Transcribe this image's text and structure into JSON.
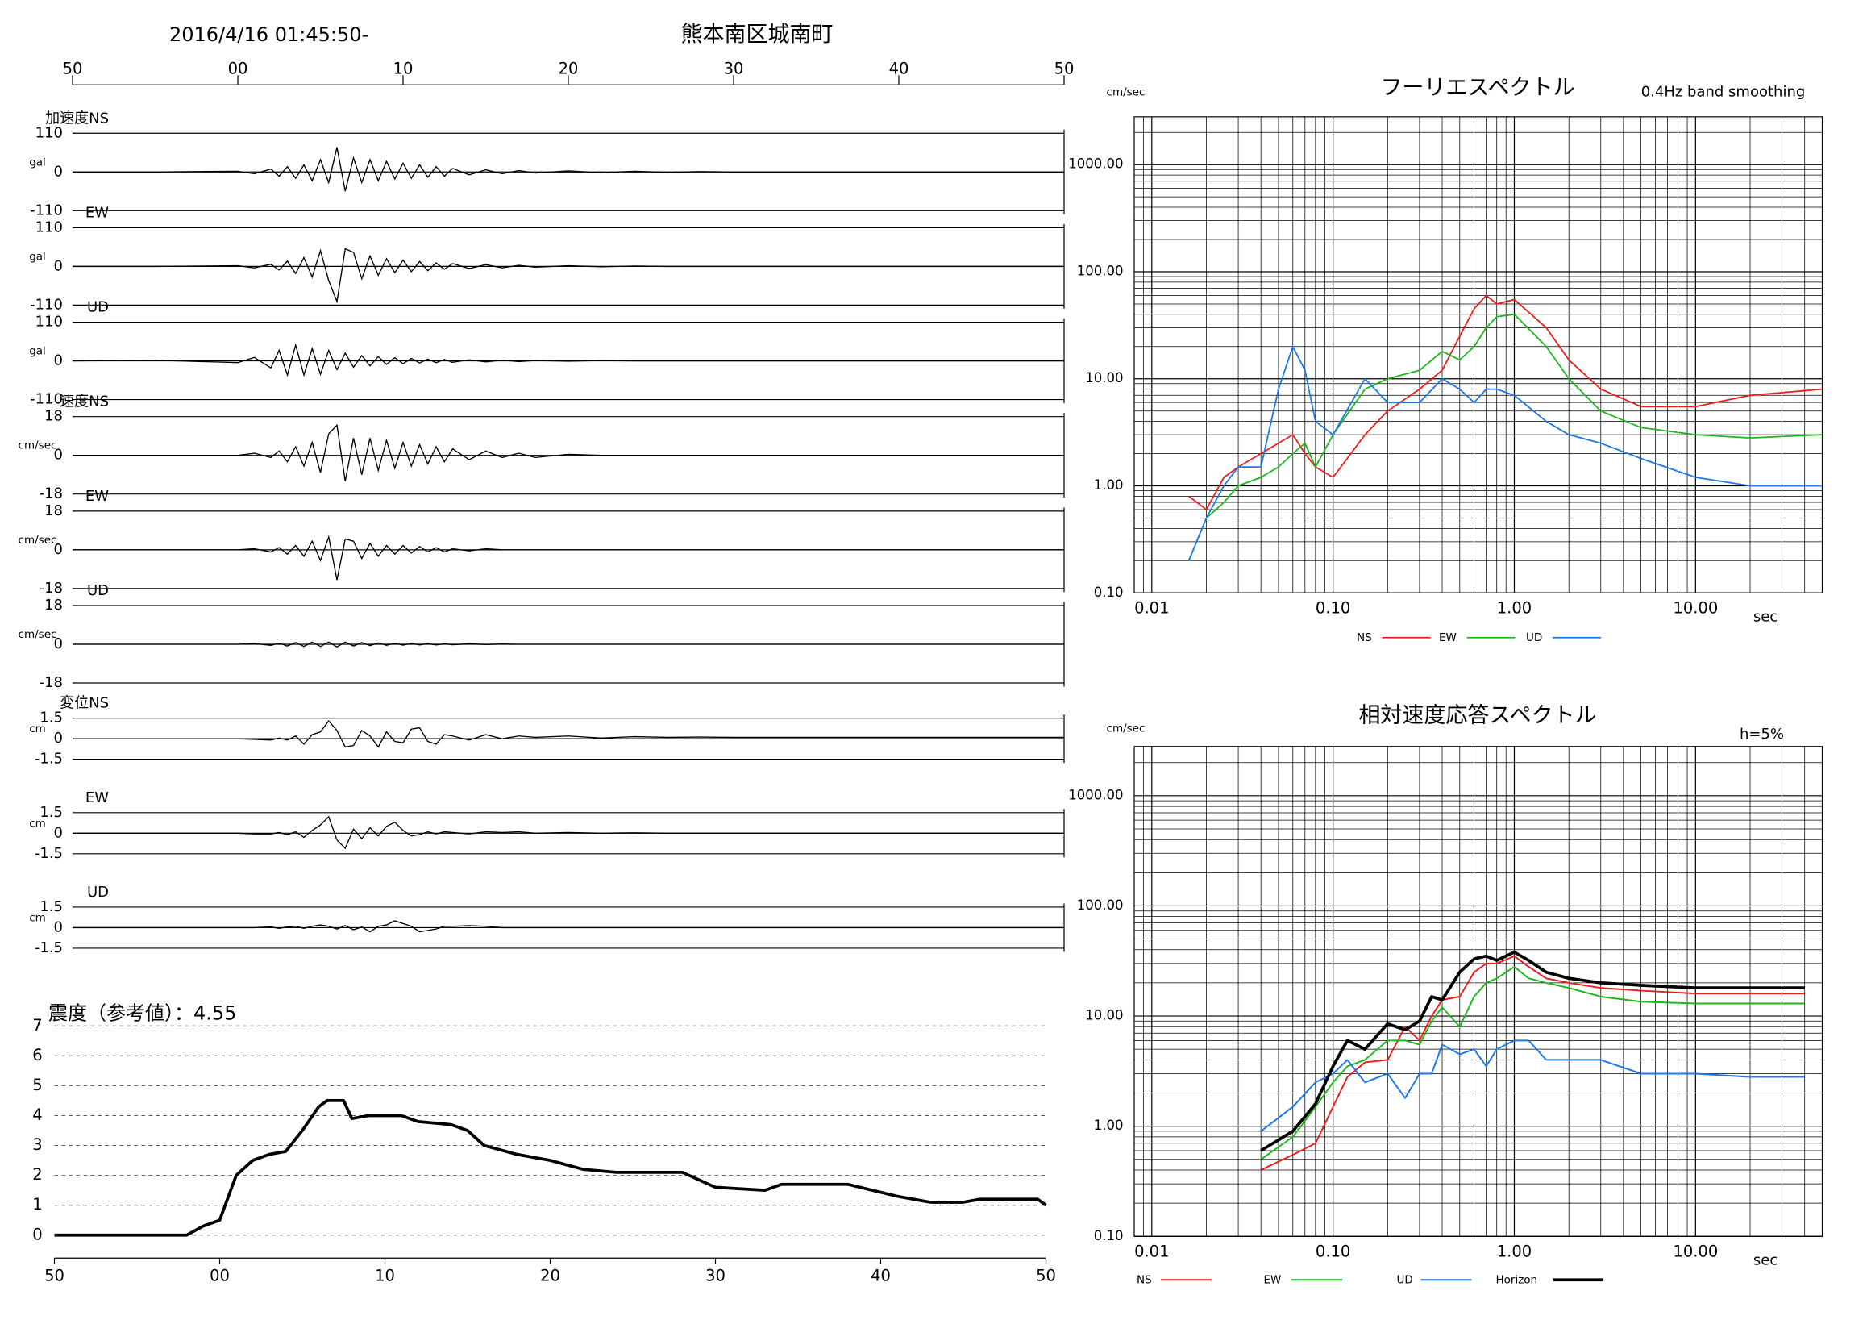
{
  "header": {
    "datetime": "2016/4/16 01:45:50-",
    "station": "熊本南区城南町"
  },
  "chart_data": [
    {
      "type": "waveforms",
      "xlim": [
        0,
        60
      ],
      "xticks": [
        {
          "value": 0,
          "label": "50"
        },
        {
          "value": 10,
          "label": "00"
        },
        {
          "value": 20,
          "label": "10"
        },
        {
          "value": 30,
          "label": "20"
        },
        {
          "value": 40,
          "label": "30"
        },
        {
          "value": 50,
          "label": "40"
        },
        {
          "value": 60,
          "label": "50"
        }
      ],
      "x": [
        0,
        5,
        10,
        11,
        12,
        12.5,
        13,
        13.5,
        14,
        14.5,
        15,
        15.5,
        16,
        16.5,
        17,
        17.5,
        18,
        18.5,
        19,
        19.5,
        20,
        20.5,
        21,
        21.5,
        22,
        22.5,
        23,
        24,
        25,
        26,
        27,
        28,
        30,
        32,
        34,
        36,
        38,
        40,
        45,
        50,
        55,
        60
      ],
      "series": [
        {
          "name": "加速度NS",
          "unit": "gal",
          "ylim": [
            -110,
            110
          ],
          "yticks": [
            -110,
            0,
            110
          ],
          "color": "#000000",
          "values": [
            0,
            0,
            2,
            -5,
            8,
            -12,
            15,
            -18,
            20,
            -25,
            35,
            -30,
            70,
            -55,
            40,
            -30,
            35,
            -25,
            30,
            -20,
            25,
            -18,
            20,
            -15,
            15,
            -12,
            10,
            -8,
            6,
            -5,
            4,
            -3,
            3,
            -2,
            2,
            -1,
            1,
            0,
            0,
            0,
            0,
            0
          ]
        },
        {
          "name": "EW",
          "unit": "gal",
          "ylim": [
            -110,
            110
          ],
          "yticks": [
            -110,
            0,
            110
          ],
          "color": "#000000",
          "values": [
            0,
            0,
            2,
            -4,
            6,
            -10,
            15,
            -20,
            25,
            -30,
            45,
            -40,
            -100,
            50,
            40,
            -35,
            30,
            -25,
            22,
            -18,
            18,
            -15,
            14,
            -12,
            10,
            -8,
            8,
            -6,
            5,
            -4,
            3,
            -2,
            2,
            -1,
            1,
            0,
            0,
            0,
            0,
            0,
            0,
            0
          ]
        },
        {
          "name": "UD",
          "unit": "gal",
          "ylim": [
            -110,
            110
          ],
          "yticks": [
            -110,
            0,
            110
          ],
          "color": "#000000",
          "values": [
            0,
            2,
            -5,
            10,
            -20,
            30,
            -40,
            45,
            -40,
            35,
            -38,
            30,
            -25,
            22,
            -18,
            15,
            -14,
            12,
            -10,
            9,
            -8,
            7,
            -6,
            5,
            -5,
            4,
            -4,
            3,
            -3,
            2,
            -2,
            1,
            -1,
            1,
            0,
            0,
            0,
            0,
            0,
            0,
            0,
            0
          ]
        },
        {
          "name": "速度NS",
          "unit": "cm/sec",
          "ylim": [
            -18,
            18
          ],
          "yticks": [
            -18,
            0,
            18
          ],
          "color": "#000000",
          "values": [
            0,
            0,
            0,
            1,
            -1,
            2,
            -3,
            4,
            -5,
            6,
            -8,
            10,
            14,
            -12,
            8,
            -9,
            8,
            -7,
            7,
            -6,
            6,
            -5,
            5,
            -4,
            4,
            -3,
            3,
            -2,
            2,
            -1,
            1,
            -1,
            0.5,
            0,
            0,
            0,
            0,
            0,
            0,
            0,
            0,
            0
          ]
        },
        {
          "name": "EW",
          "unit": "cm/sec",
          "ylim": [
            -18,
            18
          ],
          "yticks": [
            -18,
            0,
            18
          ],
          "color": "#000000",
          "values": [
            0,
            0,
            0,
            0.5,
            -1,
            1,
            -2,
            2,
            -3,
            4,
            -5,
            6,
            -14,
            5,
            4,
            -4,
            3,
            -3,
            2,
            -2,
            2,
            -1.5,
            1.5,
            -1,
            1,
            -1,
            0.5,
            -0.5,
            0.5,
            0,
            0,
            0,
            0,
            0,
            0,
            0,
            0,
            0,
            0,
            0,
            0,
            0
          ]
        },
        {
          "name": "UD",
          "unit": "cm/sec",
          "ylim": [
            -18,
            18
          ],
          "yticks": [
            -18,
            0,
            18
          ],
          "color": "#000000",
          "values": [
            0,
            0,
            0,
            0.3,
            -0.5,
            0.5,
            -0.8,
            0.8,
            -1,
            1,
            -1,
            1,
            -1.2,
            1,
            -0.8,
            0.8,
            -0.6,
            0.6,
            -0.5,
            0.5,
            -0.4,
            0.4,
            -0.3,
            0.3,
            -0.3,
            0.2,
            -0.2,
            0.2,
            -0.1,
            0.1,
            0,
            0,
            0,
            0,
            0,
            0,
            0,
            0,
            0,
            0,
            0,
            0
          ]
        },
        {
          "name": "変位NS",
          "unit": "cm",
          "ylim": [
            -1.5,
            1.5
          ],
          "yticks": [
            -1.5,
            0,
            1.5
          ],
          "color": "#000000",
          "values": [
            0,
            0,
            0,
            -0.05,
            -0.1,
            0.05,
            -0.1,
            0.2,
            -0.4,
            0.3,
            0.5,
            1.3,
            0.6,
            -0.6,
            -0.5,
            0.6,
            0.2,
            -0.6,
            0.5,
            -0.2,
            -0.3,
            0.7,
            0.8,
            -0.2,
            -0.4,
            0.3,
            0.2,
            -0.1,
            0.3,
            0,
            0.2,
            0.1,
            0.2,
            0.05,
            0.15,
            0.1,
            0.12,
            0.1,
            0.1,
            0.1,
            0.1,
            0.1
          ]
        },
        {
          "name": "EW",
          "unit": "cm",
          "ylim": [
            -1.5,
            1.5
          ],
          "yticks": [
            -1.5,
            0,
            1.5
          ],
          "color": "#000000",
          "values": [
            0,
            0,
            0,
            -0.05,
            -0.05,
            0.05,
            -0.1,
            0.1,
            -0.3,
            0.2,
            0.6,
            1.2,
            -0.5,
            -1.1,
            0.3,
            -0.4,
            0.4,
            -0.2,
            0.5,
            0.8,
            0.2,
            -0.2,
            -0.1,
            0.1,
            -0.05,
            0.1,
            0.05,
            -0.05,
            0.1,
            0.05,
            0.1,
            0,
            0.05,
            0,
            0.03,
            0,
            0,
            0,
            0,
            0,
            0,
            0
          ]
        },
        {
          "name": "UD",
          "unit": "cm",
          "ylim": [
            -1.5,
            1.5
          ],
          "yticks": [
            -1.5,
            0,
            1.5
          ],
          "color": "#000000",
          "values": [
            0,
            0,
            0,
            0,
            0.05,
            -0.05,
            0.05,
            0.1,
            -0.05,
            0.1,
            0.2,
            0.1,
            -0.1,
            0.15,
            -0.15,
            0.05,
            -0.3,
            0.1,
            0.2,
            0.5,
            0.3,
            0.1,
            -0.3,
            -0.2,
            -0.1,
            0.1,
            0.1,
            0.15,
            0.1,
            0,
            0,
            0,
            0,
            0,
            0,
            0,
            0,
            0,
            0,
            0,
            0,
            0
          ]
        }
      ]
    },
    {
      "type": "line",
      "title": "震度（参考値）：4.55",
      "xlim": [
        0,
        60
      ],
      "xticks": [
        {
          "value": 0,
          "label": "50"
        },
        {
          "value": 10,
          "label": "00"
        },
        {
          "value": 20,
          "label": "10"
        },
        {
          "value": 30,
          "label": "20"
        },
        {
          "value": 40,
          "label": "30"
        },
        {
          "value": 50,
          "label": "40"
        },
        {
          "value": 60,
          "label": "50"
        }
      ],
      "ylim": [
        0,
        7
      ],
      "yticks": [
        0,
        1,
        2,
        3,
        4,
        5,
        6,
        7
      ],
      "grid": true,
      "color": "#000000",
      "x": [
        0,
        8,
        9,
        10,
        11,
        12,
        13,
        14,
        15,
        16,
        16.5,
        17.5,
        18,
        19,
        21,
        22,
        24,
        25,
        26,
        28,
        30,
        32,
        34,
        38,
        40,
        43,
        44,
        48,
        51,
        53,
        55,
        56,
        59.5,
        60
      ],
      "values": [
        0,
        0,
        0.3,
        0.5,
        2,
        2.5,
        2.7,
        2.8,
        3.5,
        4.3,
        4.5,
        4.5,
        3.9,
        4,
        4,
        3.8,
        3.7,
        3.5,
        3,
        2.7,
        2.5,
        2.2,
        2.1,
        2.1,
        1.6,
        1.5,
        1.7,
        1.7,
        1.3,
        1.1,
        1.1,
        1.2,
        1.2,
        1
      ]
    },
    {
      "type": "line",
      "title": "フーリエスペクトル",
      "subtitle": "0.4Hz band smoothing",
      "ylabel": "cm/sec",
      "xlabel": "sec",
      "log_x": true,
      "log_y": true,
      "grid": true,
      "minor_grid": true,
      "xlim": [
        0.008,
        50
      ],
      "ylim": [
        0.1,
        2800
      ],
      "xticks": [
        {
          "value": 0.01,
          "label": "0.01"
        },
        {
          "value": 0.1,
          "label": "0.10"
        },
        {
          "value": 1,
          "label": "1.00"
        },
        {
          "value": 10,
          "label": "10.00"
        }
      ],
      "yticks": [
        {
          "value": 0.1,
          "label": "0.10"
        },
        {
          "value": 1,
          "label": "1.00"
        },
        {
          "value": 10,
          "label": "10.00"
        },
        {
          "value": 100,
          "label": "100.00"
        },
        {
          "value": 1000,
          "label": "1000.00"
        }
      ],
      "x": [
        0.016,
        0.02,
        0.025,
        0.03,
        0.04,
        0.05,
        0.06,
        0.07,
        0.08,
        0.1,
        0.15,
        0.2,
        0.3,
        0.4,
        0.5,
        0.6,
        0.7,
        0.8,
        1,
        1.5,
        2,
        3,
        5,
        10,
        20,
        50
      ],
      "series": [
        {
          "name": "NS",
          "color": "#ee1c1c",
          "values": [
            0.8,
            0.6,
            1.2,
            1.5,
            2,
            2.5,
            3,
            2,
            1.5,
            1.2,
            3,
            5,
            8,
            12,
            25,
            45,
            60,
            50,
            55,
            30,
            15,
            8,
            5.5,
            5.5,
            7,
            8
          ]
        },
        {
          "name": "EW",
          "color": "#1cb81c",
          "values": [
            0.2,
            0.5,
            0.7,
            1,
            1.2,
            1.5,
            2,
            2.5,
            1.5,
            3,
            8,
            10,
            12,
            18,
            15,
            20,
            30,
            38,
            40,
            20,
            10,
            5,
            3.5,
            3,
            2.8,
            3
          ]
        },
        {
          "name": "UD",
          "color": "#1c78e8",
          "values": [
            0.2,
            0.5,
            1,
            1.5,
            1.5,
            8,
            20,
            12,
            4,
            3,
            10,
            6,
            6,
            10,
            8,
            6,
            8,
            8,
            7,
            4,
            3,
            2.5,
            1.8,
            1.2,
            1,
            1
          ]
        }
      ]
    },
    {
      "type": "line",
      "title": "相対速度応答スペクトル",
      "subtitle": "h=5%",
      "ylabel": "cm/sec",
      "xlabel": "sec",
      "log_x": true,
      "log_y": true,
      "grid": true,
      "minor_grid": true,
      "xlim": [
        0.008,
        50
      ],
      "ylim": [
        0.1,
        2800
      ],
      "xticks": [
        {
          "value": 0.01,
          "label": "0.01"
        },
        {
          "value": 0.1,
          "label": "0.10"
        },
        {
          "value": 1,
          "label": "1.00"
        },
        {
          "value": 10,
          "label": "10.00"
        }
      ],
      "yticks": [
        {
          "value": 0.1,
          "label": "0.10"
        },
        {
          "value": 1,
          "label": "1.00"
        },
        {
          "value": 10,
          "label": "10.00"
        },
        {
          "value": 100,
          "label": "100.00"
        },
        {
          "value": 1000,
          "label": "1000.00"
        }
      ],
      "x": [
        0.04,
        0.06,
        0.08,
        0.1,
        0.12,
        0.15,
        0.2,
        0.25,
        0.3,
        0.35,
        0.4,
        0.5,
        0.6,
        0.7,
        0.8,
        1,
        1.2,
        1.5,
        2,
        3,
        5,
        10,
        20,
        40
      ],
      "series": [
        {
          "name": "NS",
          "color": "#ee1c1c",
          "values": [
            0.4,
            0.55,
            0.7,
            1.5,
            2.8,
            3.8,
            4,
            8,
            6,
            10,
            14,
            15,
            25,
            30,
            30,
            35,
            28,
            22,
            20,
            18,
            17,
            16,
            16,
            16
          ]
        },
        {
          "name": "EW",
          "color": "#1cb81c",
          "values": [
            0.5,
            0.8,
            1.5,
            2.5,
            3.5,
            4,
            6,
            6,
            5.5,
            9,
            12,
            8,
            15,
            20,
            22,
            28,
            22,
            20,
            18,
            15,
            13.5,
            13,
            13,
            13
          ]
        },
        {
          "name": "UD",
          "color": "#1c78e8",
          "values": [
            0.9,
            1.5,
            2.5,
            3,
            4,
            2.5,
            3,
            1.8,
            3,
            3,
            5.5,
            4.5,
            5,
            3.5,
            5,
            6,
            6,
            4,
            4,
            4,
            3,
            3,
            2.8,
            2.8
          ]
        },
        {
          "name": "Horizon",
          "color": "#000000",
          "values": [
            0.6,
            0.9,
            1.6,
            3.5,
            6,
            5,
            8.5,
            7.5,
            9,
            15,
            14,
            25,
            33,
            35,
            32,
            38,
            32,
            25,
            22,
            20,
            19,
            18,
            18,
            18
          ]
        }
      ]
    }
  ]
}
